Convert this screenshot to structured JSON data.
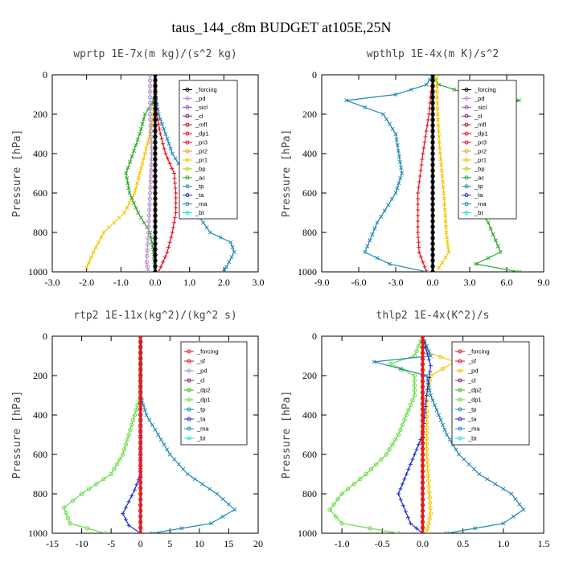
{
  "figure_title": "taus_144_c8m  BUDGET at105E,25N",
  "chart_data": [
    {
      "type": "line",
      "title": "wprtp  1E-7x(m kg)/(s^2 kg)",
      "ylabel": "Pressure [hPa]",
      "xlim": [
        -3.0,
        3.0
      ],
      "ylim": [
        1000,
        0
      ],
      "xticks": [
        "-3.0",
        "-2.0",
        "-1.0",
        "0.0",
        "1.0",
        "2.0",
        "3.0"
      ],
      "yticks": [
        "0",
        "200",
        "400",
        "600",
        "800",
        "1000"
      ],
      "legend_position": "top-right",
      "legend": [
        "_forcing",
        "_pd",
        "_sicl",
        "_cl",
        "_mfl",
        "_dp1",
        "_pr3",
        "_pr2",
        "_pr1",
        "_bp",
        "_ac",
        "_tp",
        "_ta",
        "_ma",
        "_bt"
      ],
      "series": [
        {
          "name": "_pr1",
          "color": "#f5c400",
          "marker": "x",
          "points": [
            [
              0.0,
              0
            ],
            [
              0.0,
              100
            ],
            [
              -0.05,
              200
            ],
            [
              -0.15,
              300
            ],
            [
              -0.3,
              400
            ],
            [
              -0.45,
              500
            ],
            [
              -0.6,
              600
            ],
            [
              -0.9,
              700
            ],
            [
              -1.5,
              800
            ],
            [
              -1.8,
              900
            ],
            [
              -2.0,
              980
            ]
          ]
        },
        {
          "name": "_ac",
          "color": "#2ea82e",
          "marker": "x",
          "points": [
            [
              0.0,
              0
            ],
            [
              0.0,
              100
            ],
            [
              -0.1,
              150
            ],
            [
              -0.3,
              200
            ],
            [
              -0.45,
              300
            ],
            [
              -0.85,
              500
            ],
            [
              -0.75,
              600
            ],
            [
              -0.5,
              700
            ],
            [
              -0.15,
              800
            ],
            [
              -0.05,
              900
            ],
            [
              0.0,
              1000
            ]
          ]
        },
        {
          "name": "_tp",
          "color": "#1f89b6",
          "marker": "x",
          "points": [
            [
              0.0,
              0
            ],
            [
              0.0,
              100
            ],
            [
              0.1,
              200
            ],
            [
              0.3,
              300
            ],
            [
              0.5,
              400
            ],
            [
              0.85,
              500
            ],
            [
              0.9,
              600
            ],
            [
              1.2,
              700
            ],
            [
              1.6,
              800
            ],
            [
              2.2,
              850
            ],
            [
              2.3,
              900
            ],
            [
              2.0,
              1000
            ]
          ]
        },
        {
          "name": "_pr3",
          "color": "#e6161b",
          "marker": "+",
          "points": [
            [
              0.0,
              0
            ],
            [
              0.0,
              100
            ],
            [
              0.05,
              200
            ],
            [
              0.15,
              300
            ],
            [
              0.3,
              400
            ],
            [
              0.55,
              500
            ],
            [
              0.6,
              600
            ],
            [
              0.6,
              700
            ],
            [
              0.5,
              800
            ],
            [
              0.35,
              900
            ],
            [
              0.1,
              1000
            ]
          ]
        },
        {
          "name": "_pd",
          "color": "#b48ec8",
          "marker": "o",
          "points": [
            [
              -0.15,
              0
            ],
            [
              -0.15,
              200
            ],
            [
              -0.1,
              400
            ],
            [
              -0.15,
              600
            ],
            [
              -0.2,
              800
            ],
            [
              -0.25,
              950
            ],
            [
              -0.2,
              1000
            ]
          ]
        },
        {
          "name": "_forcing",
          "color": "#000000",
          "marker": "o",
          "points": [
            [
              0.0,
              0
            ],
            [
              0.0,
              200
            ],
            [
              0.0,
              400
            ],
            [
              0.0,
              600
            ],
            [
              0.0,
              800
            ],
            [
              0.0,
              1000
            ]
          ]
        }
      ]
    },
    {
      "type": "line",
      "title": "wpthlp  1E-4x(m K)/s^2",
      "ylabel": "Pressure [hPa]",
      "xlim": [
        -9.0,
        9.0
      ],
      "ylim": [
        1000,
        0
      ],
      "xticks": [
        "-9.0",
        "-6.0",
        "-3.0",
        "0.0",
        "3.0",
        "6.0",
        "9.0"
      ],
      "yticks": [
        "0",
        "200",
        "400",
        "600",
        "800",
        "1000"
      ],
      "legend_position": "top-right",
      "legend": [
        "_forcing",
        "_pd",
        "_sicl",
        "_cl",
        "_mfl",
        "_dp1",
        "_pr3",
        "_pr2",
        "_pr1",
        "_bp",
        "_ac",
        "_tp",
        "_ta",
        "_ma",
        "_bt"
      ],
      "series": [
        {
          "name": "_ac",
          "color": "#2ea82e",
          "marker": "x",
          "points": [
            [
              0.0,
              0
            ],
            [
              0.5,
              50
            ],
            [
              3.0,
              100
            ],
            [
              7.0,
              130
            ],
            [
              4.0,
              200
            ],
            [
              3.0,
              300
            ],
            [
              2.5,
              500
            ],
            [
              3.0,
              600
            ],
            [
              4.5,
              750
            ],
            [
              5.5,
              900
            ],
            [
              3.5,
              960
            ],
            [
              7.0,
              1000
            ]
          ]
        },
        {
          "name": "_tp",
          "color": "#1f89b6",
          "marker": "x",
          "points": [
            [
              0.0,
              0
            ],
            [
              -0.5,
              50
            ],
            [
              -3.0,
              100
            ],
            [
              -7.0,
              130
            ],
            [
              -4.0,
              200
            ],
            [
              -3.0,
              300
            ],
            [
              -2.5,
              500
            ],
            [
              -3.0,
              600
            ],
            [
              -4.5,
              750
            ],
            [
              -5.5,
              900
            ],
            [
              -3.5,
              960
            ],
            [
              -0.5,
              1000
            ]
          ]
        },
        {
          "name": "_pr1",
          "color": "#f5c400",
          "marker": "x",
          "points": [
            [
              0.3,
              0
            ],
            [
              0.4,
              200
            ],
            [
              0.6,
              400
            ],
            [
              0.9,
              600
            ],
            [
              1.1,
              800
            ],
            [
              1.3,
              900
            ],
            [
              0.5,
              980
            ]
          ]
        },
        {
          "name": "_pr3",
          "color": "#e6161b",
          "marker": "+",
          "points": [
            [
              0.0,
              0
            ],
            [
              -0.3,
              200
            ],
            [
              -0.8,
              400
            ],
            [
              -1.2,
              600
            ],
            [
              -1.2,
              800
            ],
            [
              -1.1,
              900
            ],
            [
              -0.5,
              1000
            ]
          ]
        },
        {
          "name": "_forcing",
          "color": "#000000",
          "marker": "o",
          "points": [
            [
              0.0,
              0
            ],
            [
              0.0,
              1000
            ]
          ]
        }
      ]
    },
    {
      "type": "line",
      "title": "rtp2  1E-11x(kg^2)/(kg^2 s)",
      "ylabel": "Pressure [hPa]",
      "xlim": [
        -15,
        20
      ],
      "ylim": [
        1000,
        0
      ],
      "xticks": [
        "-15",
        "-10",
        "-5",
        "0",
        "5",
        "10",
        "15",
        "20"
      ],
      "yticks": [
        "0",
        "200",
        "400",
        "600",
        "800",
        "1000"
      ],
      "legend_position": "top-right",
      "legend": [
        "_forcing",
        "_sf",
        "_pd",
        "_cl",
        "_dp2",
        "_dp1",
        "_tp",
        "_ta",
        "_ma",
        "_bt"
      ],
      "series": [
        {
          "name": "_dp1",
          "color": "#66dd44",
          "marker": "o",
          "points": [
            [
              0,
              0
            ],
            [
              0,
              300
            ],
            [
              -1,
              400
            ],
            [
              -2,
              500
            ],
            [
              -3,
              600
            ],
            [
              -5,
              700
            ],
            [
              -10,
              800
            ],
            [
              -13,
              870
            ],
            [
              -12,
              950
            ],
            [
              -6,
              1000
            ]
          ]
        },
        {
          "name": "_tp",
          "color": "#1f89b6",
          "marker": "x",
          "points": [
            [
              0,
              0
            ],
            [
              0,
              300
            ],
            [
              1,
              400
            ],
            [
              3,
              500
            ],
            [
              5,
              600
            ],
            [
              8,
              700
            ],
            [
              13,
              800
            ],
            [
              16,
              880
            ],
            [
              12,
              950
            ],
            [
              2,
              1000
            ]
          ]
        },
        {
          "name": "_ta",
          "color": "#2233cc",
          "marker": "+",
          "points": [
            [
              0,
              0
            ],
            [
              0,
              700
            ],
            [
              -1,
              780
            ],
            [
              -3,
              900
            ],
            [
              -2,
              960
            ],
            [
              0,
              1000
            ]
          ]
        },
        {
          "name": "_forcing",
          "color": "#e6161b",
          "marker": "o",
          "points": [
            [
              0,
              0
            ],
            [
              0,
              1000
            ]
          ]
        }
      ]
    },
    {
      "type": "line",
      "title": "thlp2  1E-4x(K^2)/s",
      "ylabel": "Pressure [hPa]",
      "xlim": [
        -1.25,
        1.5
      ],
      "ylim": [
        1000,
        0
      ],
      "xticks": [
        "-1.0",
        "-0.5",
        "0.0",
        "0.5",
        "1.0",
        "1.5"
      ],
      "yticks": [
        "0",
        "200",
        "400",
        "600",
        "800",
        "1000"
      ],
      "legend_position": "top-right",
      "legend": [
        "_forcing",
        "_sf",
        "_pd",
        "_cl",
        "_dp2",
        "_dp1",
        "_tp",
        "_ta",
        "_ma",
        "_bt"
      ],
      "series": [
        {
          "name": "_pd",
          "color": "#f5c400",
          "marker": "o",
          "points": [
            [
              0,
              0
            ],
            [
              0.05,
              80
            ],
            [
              0.4,
              130
            ],
            [
              0.1,
              200
            ],
            [
              0.05,
              300
            ],
            [
              0.05,
              600
            ],
            [
              0.1,
              900
            ],
            [
              0.05,
              1000
            ]
          ]
        },
        {
          "name": "_dp1",
          "color": "#66dd44",
          "marker": "o",
          "points": [
            [
              0,
              0
            ],
            [
              -0.1,
              100
            ],
            [
              -0.4,
              140
            ],
            [
              -0.1,
              200
            ],
            [
              -0.1,
              300
            ],
            [
              -0.2,
              400
            ],
            [
              -0.3,
              500
            ],
            [
              -0.45,
              600
            ],
            [
              -0.7,
              700
            ],
            [
              -1.0,
              800
            ],
            [
              -1.15,
              880
            ],
            [
              -1.0,
              950
            ],
            [
              -0.3,
              1000
            ]
          ]
        },
        {
          "name": "_tp",
          "color": "#1f89b6",
          "marker": "x",
          "points": [
            [
              0,
              0
            ],
            [
              0.1,
              100
            ],
            [
              -0.6,
              130
            ],
            [
              0.05,
              200
            ],
            [
              0.1,
              300
            ],
            [
              0.2,
              400
            ],
            [
              0.3,
              500
            ],
            [
              0.45,
              600
            ],
            [
              0.7,
              700
            ],
            [
              1.1,
              800
            ],
            [
              1.25,
              880
            ],
            [
              1.0,
              950
            ],
            [
              0.3,
              1000
            ]
          ]
        },
        {
          "name": "_ta",
          "color": "#2233cc",
          "marker": "+",
          "points": [
            [
              0,
              0
            ],
            [
              0.1,
              150
            ],
            [
              0.05,
              300
            ],
            [
              0,
              500
            ],
            [
              -0.1,
              600
            ],
            [
              -0.2,
              700
            ],
            [
              -0.3,
              800
            ],
            [
              -0.15,
              950
            ],
            [
              0,
              1000
            ]
          ]
        },
        {
          "name": "_forcing",
          "color": "#e6161b",
          "marker": "o",
          "points": [
            [
              0,
              0
            ],
            [
              0,
              1000
            ]
          ]
        }
      ]
    }
  ]
}
